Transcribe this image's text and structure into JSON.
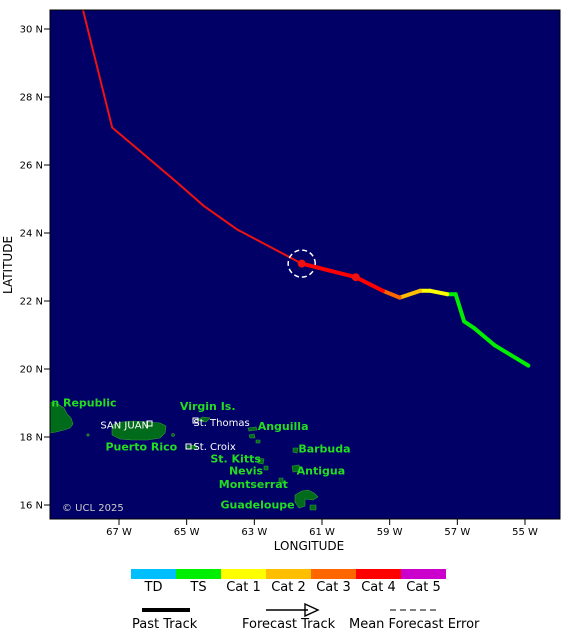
{
  "map": {
    "xlabel": "LONGITUDE",
    "ylabel": "LATITUDE",
    "copyright": "© UCL 2025",
    "lat_ticks": [
      {
        "value": 30,
        "label": "30 N"
      },
      {
        "value": 28,
        "label": "28 N"
      },
      {
        "value": 26,
        "label": "26 N"
      },
      {
        "value": 24,
        "label": "24 N"
      },
      {
        "value": 22,
        "label": "22 N"
      },
      {
        "value": 20,
        "label": "20 N"
      },
      {
        "value": 18,
        "label": "18 N"
      },
      {
        "value": 16,
        "label": "16 N"
      }
    ],
    "lon_ticks": [
      {
        "value": -67,
        "label": "67 W"
      },
      {
        "value": -65,
        "label": "65 W"
      },
      {
        "value": -63,
        "label": "63 W"
      },
      {
        "value": -61,
        "label": "61 W"
      },
      {
        "value": -59,
        "label": "59 W"
      },
      {
        "value": -57,
        "label": "57 W"
      },
      {
        "value": -55,
        "label": "55 W"
      }
    ],
    "places_green": [
      {
        "label": "n Republic",
        "lon": -69.0,
        "lat": 18.9
      },
      {
        "label": "Virgin Is.",
        "lon": -65.2,
        "lat": 18.8
      },
      {
        "label": "Puerto Rico",
        "lon": -67.4,
        "lat": 17.6
      },
      {
        "label": "Anguilla",
        "lon": -62.9,
        "lat": 18.2
      },
      {
        "label": "Barbuda",
        "lon": -61.7,
        "lat": 17.55
      },
      {
        "label": "St. Kitts",
        "lon": -64.3,
        "lat": 17.25
      },
      {
        "label": "Nevis",
        "lon": -63.75,
        "lat": 16.9
      },
      {
        "label": "Antigua",
        "lon": -61.75,
        "lat": 16.9
      },
      {
        "label": "Montserrat",
        "lon": -64.05,
        "lat": 16.5
      },
      {
        "label": "Guadeloupe",
        "lon": -64.0,
        "lat": 15.9
      }
    ],
    "places_white": [
      {
        "label": "SAN JUAN",
        "lon": -67.55,
        "lat": 18.25
      },
      {
        "label": "St. Thomas",
        "lon": -64.8,
        "lat": 18.32
      },
      {
        "label": "St. Croix",
        "lon": -64.8,
        "lat": 17.62
      }
    ],
    "legend": {
      "categories": [
        {
          "label": "TD",
          "color": "#00bfff"
        },
        {
          "label": "TS",
          "color": "#00ee00"
        },
        {
          "label": "Cat 1",
          "color": "#ffff00"
        },
        {
          "label": "Cat 2",
          "color": "#ffbf00"
        },
        {
          "label": "Cat 3",
          "color": "#ff6600"
        },
        {
          "label": "Cat 4",
          "color": "#ff0000"
        },
        {
          "label": "Cat 5",
          "color": "#cc00cc"
        }
      ],
      "past_track_label": "Past Track",
      "forecast_track_label": "Forecast Track",
      "error_label": "Mean Forecast Error"
    }
  },
  "chart_data": {
    "type": "track-map",
    "xlim": [
      -69,
      -53.8
    ],
    "ylim": [
      15.8,
      30.6
    ],
    "past_track": [
      {
        "lon": -54.9,
        "lat": 20.1,
        "intensity": "TS"
      },
      {
        "lon": -55.9,
        "lat": 20.7,
        "intensity": "TS"
      },
      {
        "lon": -56.5,
        "lat": 21.2,
        "intensity": "TS"
      },
      {
        "lon": -56.8,
        "lat": 21.4,
        "intensity": "TS"
      },
      {
        "lon": -57.05,
        "lat": 22.2,
        "intensity": "TS"
      },
      {
        "lon": -57.3,
        "lat": 22.2,
        "intensity": "Cat 1"
      },
      {
        "lon": -57.8,
        "lat": 22.3,
        "intensity": "Cat 1"
      },
      {
        "lon": -58.1,
        "lat": 22.3,
        "intensity": "Cat 2"
      },
      {
        "lon": -58.7,
        "lat": 22.1,
        "intensity": "Cat 3"
      },
      {
        "lon": -59.2,
        "lat": 22.3,
        "intensity": "Cat 4"
      },
      {
        "lon": -60.0,
        "lat": 22.7,
        "intensity": "Cat 4"
      },
      {
        "lon": -61.6,
        "lat": 23.1,
        "intensity": "Cat 4"
      }
    ],
    "forecast_track": [
      {
        "lon": -61.6,
        "lat": 23.1
      },
      {
        "lon": -63.5,
        "lat": 24.1
      },
      {
        "lon": -64.5,
        "lat": 24.8
      },
      {
        "lon": -65.3,
        "lat": 25.5
      },
      {
        "lon": -67.2,
        "lat": 27.1
      },
      {
        "lon": -68.1,
        "lat": 30.7
      }
    ],
    "forecast_points": [
      {
        "lon": -61.6,
        "lat": 23.1
      },
      {
        "lon": -60.0,
        "lat": 22.7
      }
    ],
    "error_circle": {
      "lon": -61.6,
      "lat": 23.1,
      "radius_deg": 0.4
    }
  }
}
